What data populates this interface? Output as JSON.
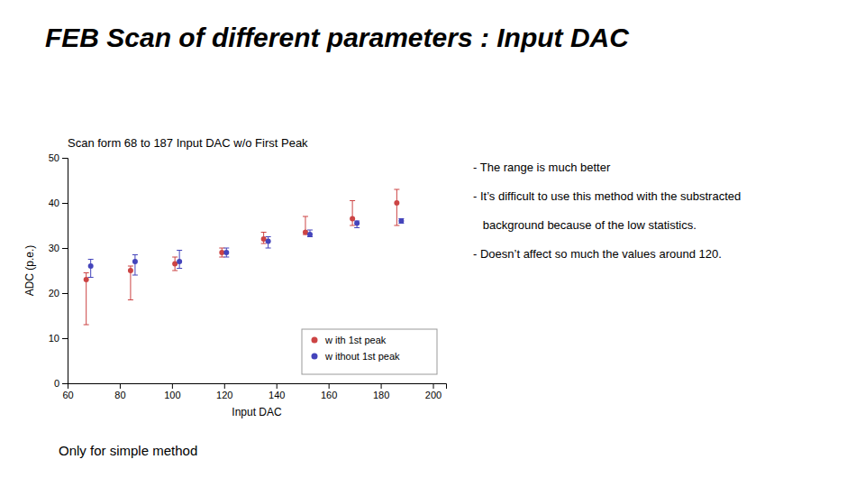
{
  "chart_data": {
    "type": "scatter",
    "title": "FEB Scan of different parameters : Input DAC",
    "subtitle": "Scan form 68 to 187 Input DAC w/o First Peak",
    "xlabel": "Input DAC",
    "ylabel": "ADC (p.e.)",
    "caption": "Only for simple method",
    "annotations": [
      "- The range is much better",
      "- It’s difficult to use this method with the substracted",
      "   background because of the low statistics.",
      "- Doesn’t affect so much the values around 120."
    ],
    "xlim": [
      60,
      205
    ],
    "ylim": [
      0,
      50
    ],
    "xticks": [
      60,
      80,
      100,
      120,
      140,
      160,
      180,
      200
    ],
    "yticks": [
      0,
      10,
      20,
      30,
      40,
      50
    ],
    "grid": false,
    "legend": "lower right",
    "series": [
      {
        "name": "w ith 1st peak",
        "color": "#cc4444",
        "marker": "point",
        "x": [
          68,
          85,
          102,
          120,
          136,
          152,
          170,
          187
        ],
        "values": [
          23.0,
          25.0,
          26.5,
          29.0,
          32.0,
          33.5,
          36.5,
          40.0
        ],
        "error_low": [
          10.0,
          6.5,
          1.5,
          1.0,
          1.0,
          0.5,
          1.5,
          5.0
        ],
        "error_high": [
          1.5,
          1.0,
          1.5,
          1.0,
          1.5,
          3.5,
          4.0,
          3.0
        ]
      },
      {
        "name": "w ithout 1st peak",
        "color": "#4444bb",
        "marker": "point",
        "x": [
          68,
          85,
          102,
          120,
          136,
          152,
          170,
          187
        ],
        "values": [
          26.0,
          27.0,
          27.0,
          29.0,
          31.5,
          33.0,
          35.5,
          36.0
        ],
        "error_low": [
          2.5,
          3.0,
          1.5,
          1.0,
          1.5,
          0.5,
          1.0,
          0.5
        ],
        "error_high": [
          1.5,
          1.5,
          2.5,
          1.0,
          1.0,
          1.0,
          0.5,
          0.5
        ]
      }
    ]
  }
}
